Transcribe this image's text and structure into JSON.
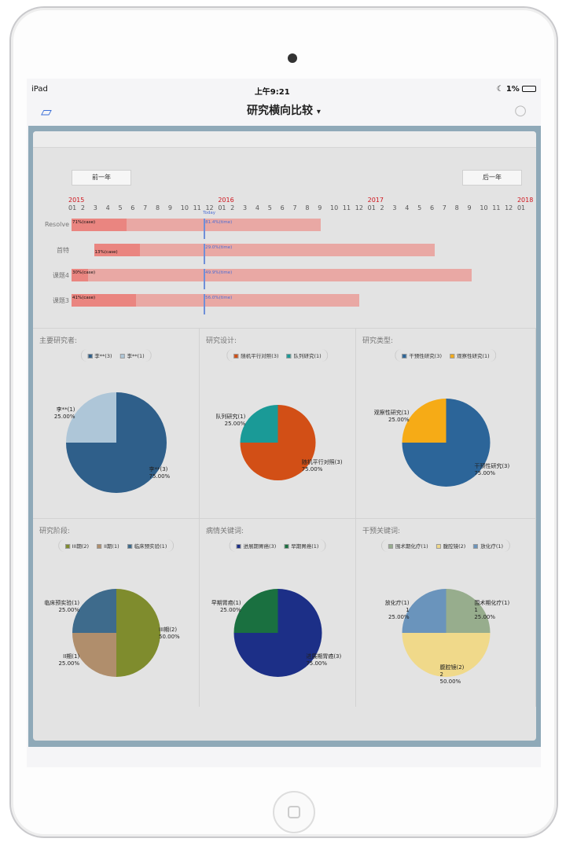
{
  "status": {
    "device": "iPad",
    "time": "上午9:21",
    "battery": "1%"
  },
  "nav": {
    "title": "研究横向比较",
    "dropdown": "▾"
  },
  "gantt": {
    "prev": "前一年",
    "next": "后一年",
    "today_label": "Today",
    "start_year": 2015,
    "years": [
      "2015",
      "2016",
      "2017",
      "2018"
    ],
    "today_month": 10.6,
    "rows": [
      {
        "label": "Resolve",
        "start": 0,
        "end": 20,
        "case_pct": "71%(case)",
        "time_pct": "81.4%(time)",
        "progress_month": 4.4
      },
      {
        "label": "首特",
        "start": 1.8,
        "end": 29.1,
        "case_pct": "13%(case)",
        "time_pct": "29.0%(time)",
        "progress_month": 5.5
      },
      {
        "label": "课题4",
        "start": 0,
        "end": 32.1,
        "case_pct": "30%(case)",
        "time_pct": "49.9%(time)",
        "progress_month": 1.3
      },
      {
        "label": "课题3",
        "start": 0,
        "end": 23.1,
        "case_pct": "41%(case)",
        "time_pct": "56.0%(time)",
        "progress_month": 5.2
      }
    ]
  },
  "pies": [
    {
      "title": "主要研究者:",
      "slices": [
        {
          "name": "李**",
          "count": 3,
          "legend": "李**(3)",
          "label": "李**(3)",
          "pct": "75.00%",
          "color": "#2f5f8a"
        },
        {
          "name": "李**",
          "count": 1,
          "legend": "李**(1)",
          "label": "李**(1)",
          "pct": "25.00%",
          "color": "#aec6d8"
        }
      ]
    },
    {
      "title": "研究设计:",
      "slices": [
        {
          "count": 3,
          "legend": "随机平行对照(3)",
          "label": "随机平行对照(3)",
          "pct": "75.00%",
          "color": "#d24f16"
        },
        {
          "count": 1,
          "legend": "队列研究(1)",
          "label": "队列研究(1)",
          "pct": "25.00%",
          "color": "#1a9a97"
        }
      ]
    },
    {
      "title": "研究类型:",
      "slices": [
        {
          "count": 3,
          "legend": "干预性研究(3)",
          "label": "干预性研究(3)",
          "pct": "75.00%",
          "color": "#2c6599"
        },
        {
          "count": 1,
          "legend": "观察性研究(1)",
          "label": "观察性研究(1)",
          "pct": "25.00%",
          "color": "#f6ab16"
        }
      ]
    },
    {
      "title": "研究阶段:",
      "slices": [
        {
          "count": 2,
          "legend": "III期(2)",
          "label": "III期(2)",
          "pct": "50.00%",
          "color": "#7f8c2d"
        },
        {
          "count": 1,
          "legend": "II期(1)",
          "label": "II期(1)",
          "pct": "25.00%",
          "color": "#b08e6c"
        },
        {
          "count": 1,
          "legend": "临床预实验(1)",
          "label": "临床预实验(1)",
          "pct": "25.00%",
          "color": "#3e6b8c"
        }
      ]
    },
    {
      "title": "病情关键词:",
      "slices": [
        {
          "count": 3,
          "legend": "进展期胃癌(3)",
          "label": "进展期胃癌(3)",
          "pct": "75.00%",
          "color": "#1c2f87"
        },
        {
          "count": 1,
          "legend": "早期胃癌(1)",
          "label": "早期胃癌(1)",
          "pct": "25.00%",
          "color": "#1a7040"
        }
      ]
    },
    {
      "title": "干预关键词:",
      "slices": [
        {
          "count": 1,
          "legend": "围术期化疗(1)",
          "label": "围术期化疗(1)",
          "extra": "1",
          "pct": "25.00%",
          "color": "#97ad8d"
        },
        {
          "count": 2,
          "legend": "腹腔镜(2)",
          "label": "腹腔镜(2)",
          "extra": "2",
          "pct": "50.00%",
          "color": "#f0d98a"
        },
        {
          "count": 1,
          "legend": "放化疗(1)",
          "label": "放化疗(1)",
          "extra": "1",
          "pct": "25.00%",
          "color": "#6a94bc"
        }
      ]
    }
  ]
}
